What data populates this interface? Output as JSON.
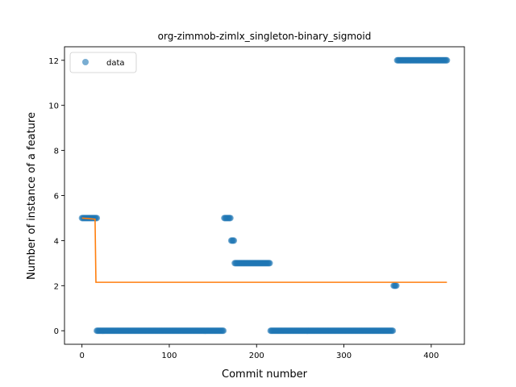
{
  "chart_data": {
    "type": "scatter",
    "title": "org-zimmob-zimlx_singleton-binary_sigmoid",
    "xlabel": "Commit number",
    "ylabel": "Number of instance of a feature",
    "xlim": [
      -20,
      438
    ],
    "ylim": [
      -0.6,
      12.6
    ],
    "xticks": [
      0,
      100,
      200,
      300,
      400
    ],
    "yticks": [
      0,
      2,
      4,
      6,
      8,
      10,
      12
    ],
    "legend": {
      "location": "top-left",
      "entries": [
        {
          "label": "data",
          "marker": "circle"
        }
      ]
    },
    "colors": {
      "data": "#1f77b4",
      "fit": "#ff7f0e"
    },
    "segments": [
      {
        "x_start": 0,
        "x_end": 17,
        "y": 5
      },
      {
        "x_start": 17,
        "x_end": 162,
        "y": 0
      },
      {
        "x_start": 163,
        "x_end": 170,
        "y": 5
      },
      {
        "x_start": 171,
        "x_end": 174,
        "y": 4
      },
      {
        "x_start": 175,
        "x_end": 215,
        "y": 3
      },
      {
        "x_start": 216,
        "x_end": 356,
        "y": 0
      },
      {
        "x_start": 357,
        "x_end": 360,
        "y": 2
      },
      {
        "x_start": 361,
        "x_end": 418,
        "y": 12
      }
    ],
    "fit_line": {
      "x": [
        0,
        15,
        16,
        418
      ],
      "y": [
        5.0,
        4.95,
        2.15,
        2.15
      ]
    }
  }
}
